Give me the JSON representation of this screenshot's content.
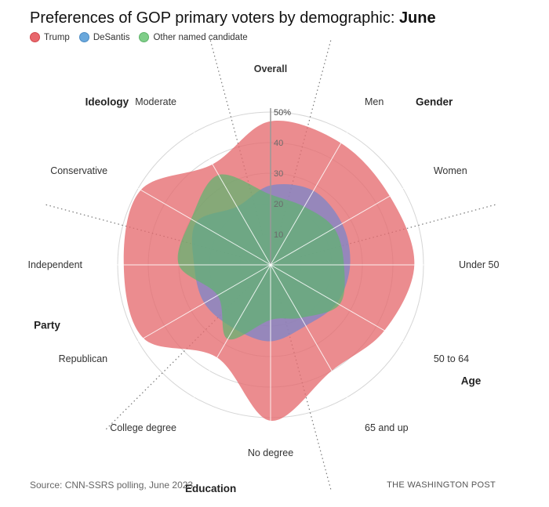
{
  "title": {
    "prefix": "Preferences of GOP primary voters by demographic: ",
    "highlight": "June"
  },
  "legend": [
    {
      "label": "Trump",
      "color": "#e8676c"
    },
    {
      "label": "DeSantis",
      "color": "#6aa8dc"
    },
    {
      "label": "Other named candidate",
      "color": "#7fce89"
    }
  ],
  "source": "Source: CNN-SSRS polling, June 2023",
  "credit": "THE WASHINGTON POST",
  "chart_data": {
    "type": "radar",
    "axes": [
      "Overall",
      "Men",
      "Women",
      "Under 50",
      "50 to 64",
      "65 and up",
      "No degree",
      "College degree",
      "Republican",
      "Independent",
      "Conservative",
      "Moderate"
    ],
    "groups": [
      {
        "label": "Overall",
        "axes": [
          "Overall"
        ]
      },
      {
        "label": "Gender",
        "axes": [
          "Men",
          "Women"
        ]
      },
      {
        "label": "Age",
        "axes": [
          "Under 50",
          "50 to 64",
          "65 and up"
        ]
      },
      {
        "label": "Education",
        "axes": [
          "No degree",
          "College degree"
        ]
      },
      {
        "label": "Party",
        "axes": [
          "Republican",
          "Independent"
        ]
      },
      {
        "label": "Ideology",
        "axes": [
          "Conservative",
          "Moderate"
        ]
      }
    ],
    "radial_ticks": [
      "10",
      "20",
      "30",
      "40",
      "50%"
    ],
    "rmax": 50,
    "series": [
      {
        "name": "Trump",
        "color": "#e8676c",
        "values": [
          47,
          46,
          45,
          47,
          43,
          40,
          51,
          35,
          48,
          48,
          49,
          38
        ]
      },
      {
        "name": "DeSantis",
        "color": "#7a8ccf",
        "values": [
          26,
          28,
          27,
          26,
          25,
          23,
          25,
          24,
          25,
          25,
          28,
          22
        ]
      },
      {
        "name": "Other named candidate",
        "color": "#5fb974",
        "values": [
          23,
          22,
          24,
          24,
          26,
          20,
          18,
          28,
          20,
          30,
          30,
          34
        ]
      }
    ]
  }
}
